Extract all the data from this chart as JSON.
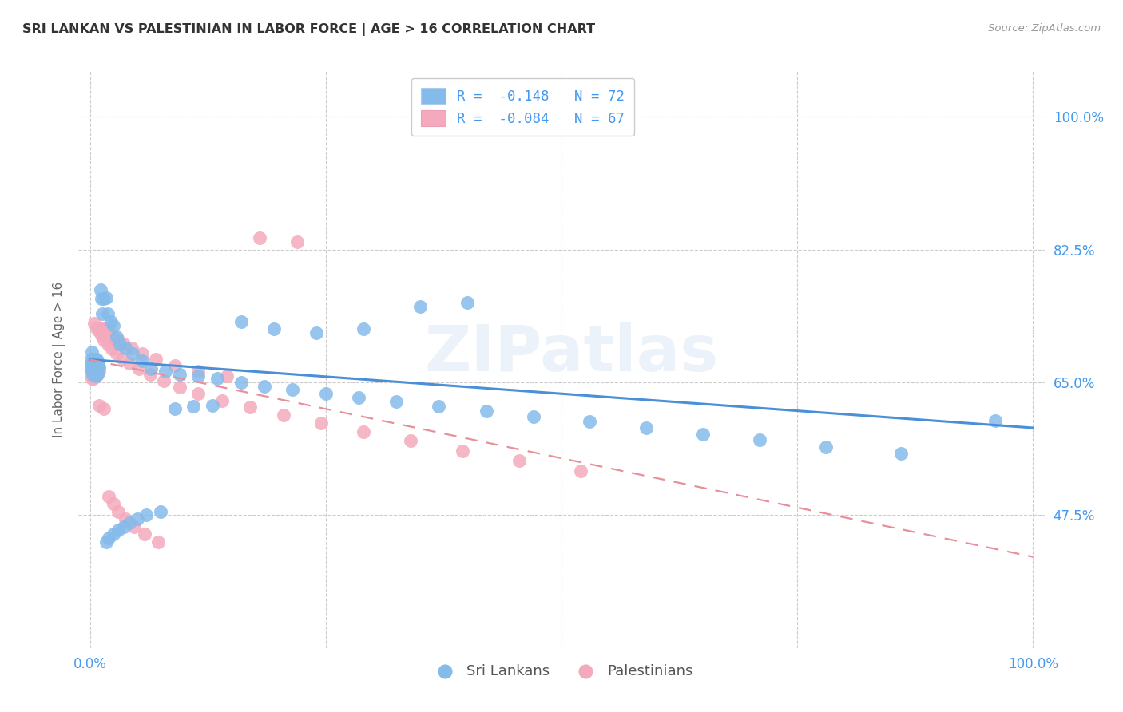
{
  "title": "SRI LANKAN VS PALESTINIAN IN LABOR FORCE | AGE > 16 CORRELATION CHART",
  "source": "Source: ZipAtlas.com",
  "ylabel": "In Labor Force | Age > 16",
  "ylim_min": 0.3,
  "ylim_max": 1.06,
  "ytick_vals": [
    0.475,
    0.65,
    0.825,
    1.0
  ],
  "ytick_labels": [
    "47.5%",
    "65.0%",
    "82.5%",
    "100.0%"
  ],
  "xtick_vals": [
    0.0,
    1.0
  ],
  "xtick_labels": [
    "0.0%",
    "100.0%"
  ],
  "sri_color": "#85BBEA",
  "pal_color": "#F4AABC",
  "sri_line_color": "#4A90D9",
  "pal_line_color": "#E8909A",
  "legend_R_sri": "R =  -0.148",
  "legend_N_sri": "N = 72",
  "legend_R_pal": "R =  -0.084",
  "legend_N_pal": "N = 67",
  "watermark": "ZIPatlas",
  "sri_x": [
    0.001,
    0.001,
    0.002,
    0.002,
    0.002,
    0.003,
    0.003,
    0.003,
    0.004,
    0.004,
    0.005,
    0.005,
    0.006,
    0.006,
    0.007,
    0.007,
    0.008,
    0.008,
    0.009,
    0.01,
    0.011,
    0.012,
    0.013,
    0.015,
    0.017,
    0.019,
    0.022,
    0.025,
    0.028,
    0.032,
    0.038,
    0.045,
    0.055,
    0.065,
    0.08,
    0.095,
    0.115,
    0.135,
    0.16,
    0.185,
    0.215,
    0.25,
    0.285,
    0.325,
    0.37,
    0.42,
    0.47,
    0.53,
    0.59,
    0.65,
    0.71,
    0.78,
    0.86,
    0.96,
    0.35,
    0.4,
    0.29,
    0.24,
    0.195,
    0.16,
    0.13,
    0.11,
    0.09,
    0.075,
    0.06,
    0.05,
    0.042,
    0.036,
    0.03,
    0.025,
    0.02,
    0.017
  ],
  "sri_y": [
    0.68,
    0.67,
    0.675,
    0.665,
    0.69,
    0.668,
    0.672,
    0.66,
    0.68,
    0.665,
    0.67,
    0.66,
    0.672,
    0.658,
    0.68,
    0.665,
    0.678,
    0.66,
    0.675,
    0.67,
    0.772,
    0.76,
    0.74,
    0.76,
    0.762,
    0.74,
    0.73,
    0.725,
    0.71,
    0.7,
    0.695,
    0.688,
    0.678,
    0.668,
    0.665,
    0.66,
    0.658,
    0.655,
    0.65,
    0.645,
    0.64,
    0.635,
    0.63,
    0.625,
    0.618,
    0.612,
    0.605,
    0.598,
    0.59,
    0.582,
    0.574,
    0.565,
    0.556,
    0.6,
    0.75,
    0.755,
    0.72,
    0.715,
    0.72,
    0.73,
    0.62,
    0.618,
    0.615,
    0.48,
    0.475,
    0.47,
    0.465,
    0.46,
    0.455,
    0.45,
    0.445,
    0.44
  ],
  "pal_x": [
    0.001,
    0.001,
    0.002,
    0.002,
    0.003,
    0.003,
    0.004,
    0.004,
    0.005,
    0.005,
    0.006,
    0.006,
    0.007,
    0.008,
    0.009,
    0.01,
    0.011,
    0.012,
    0.013,
    0.014,
    0.016,
    0.018,
    0.021,
    0.025,
    0.03,
    0.036,
    0.044,
    0.055,
    0.07,
    0.09,
    0.115,
    0.145,
    0.18,
    0.22,
    0.005,
    0.007,
    0.009,
    0.012,
    0.015,
    0.019,
    0.023,
    0.028,
    0.034,
    0.042,
    0.052,
    0.064,
    0.078,
    0.095,
    0.115,
    0.14,
    0.17,
    0.205,
    0.245,
    0.29,
    0.34,
    0.395,
    0.455,
    0.52,
    0.01,
    0.015,
    0.02,
    0.025,
    0.03,
    0.038,
    0.047,
    0.058,
    0.072
  ],
  "pal_y": [
    0.672,
    0.66,
    0.668,
    0.655,
    0.672,
    0.66,
    0.668,
    0.655,
    0.678,
    0.662,
    0.672,
    0.658,
    0.668,
    0.66,
    0.672,
    0.665,
    0.72,
    0.715,
    0.718,
    0.722,
    0.72,
    0.718,
    0.715,
    0.71,
    0.706,
    0.7,
    0.695,
    0.688,
    0.68,
    0.672,
    0.665,
    0.658,
    0.84,
    0.835,
    0.728,
    0.722,
    0.718,
    0.712,
    0.706,
    0.7,
    0.694,
    0.688,
    0.682,
    0.675,
    0.668,
    0.66,
    0.652,
    0.644,
    0.635,
    0.626,
    0.617,
    0.607,
    0.596,
    0.585,
    0.573,
    0.56,
    0.547,
    0.533,
    0.62,
    0.615,
    0.5,
    0.49,
    0.48,
    0.47,
    0.46,
    0.45,
    0.44
  ]
}
